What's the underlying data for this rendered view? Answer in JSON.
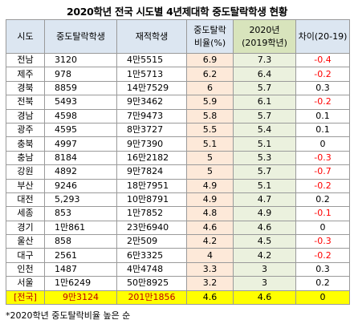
{
  "title": "2020학년 전국 시도별 4년제대학 중도탈락학생 현황",
  "headers": {
    "region": "시도",
    "dropouts": "중도탈락학생",
    "enrolled": "재적학생",
    "rate_line1": "중도탈락",
    "rate_line2": "비율(%)",
    "y2019_line1": "2020년",
    "y2019_line2": "(2019학년)",
    "diff": "차이(20-19)"
  },
  "rows": [
    {
      "region": "전남",
      "dropouts": "3120",
      "enrolled": "4만5515",
      "rate": "6.9",
      "y2019": "7.3",
      "diff": "-0.4"
    },
    {
      "region": "제주",
      "dropouts": "978",
      "enrolled": "1만5713",
      "rate": "6.2",
      "y2019": "6.4",
      "diff": "-0.2"
    },
    {
      "region": "경북",
      "dropouts": "8859",
      "enrolled": "14만7529",
      "rate": "6",
      "y2019": "5.7",
      "diff": "0.3"
    },
    {
      "region": "전북",
      "dropouts": "5493",
      "enrolled": "9만3462",
      "rate": "5.9",
      "y2019": "6.1",
      "diff": "-0.2"
    },
    {
      "region": "경남",
      "dropouts": "4598",
      "enrolled": "7만9473",
      "rate": "5.8",
      "y2019": "5.7",
      "diff": "0.1"
    },
    {
      "region": "광주",
      "dropouts": "4595",
      "enrolled": "8만3727",
      "rate": "5.5",
      "y2019": "5.4",
      "diff": "0.1"
    },
    {
      "region": "충북",
      "dropouts": "4997",
      "enrolled": "9만7390",
      "rate": "5.1",
      "y2019": "5.1",
      "diff": "0"
    },
    {
      "region": "충남",
      "dropouts": "8184",
      "enrolled": "16만2182",
      "rate": "5",
      "y2019": "5.3",
      "diff": "-0.3"
    },
    {
      "region": "강원",
      "dropouts": "4892",
      "enrolled": "9만7824",
      "rate": "5",
      "y2019": "5.7",
      "diff": "-0.7"
    },
    {
      "region": "부산",
      "dropouts": "9246",
      "enrolled": "18만7951",
      "rate": "4.9",
      "y2019": "5.1",
      "diff": "-0.2"
    },
    {
      "region": "대전",
      "dropouts": "5,293",
      "enrolled": "10만8791",
      "rate": "4.9",
      "y2019": "4.7",
      "diff": "0.2"
    },
    {
      "region": "세종",
      "dropouts": "853",
      "enrolled": "1만7852",
      "rate": "4.8",
      "y2019": "4.9",
      "diff": "-0.1"
    },
    {
      "region": "경기",
      "dropouts": "1만861",
      "enrolled": "23만6940",
      "rate": "4.6",
      "y2019": "4.6",
      "diff": "0"
    },
    {
      "region": "울산",
      "dropouts": "858",
      "enrolled": "2만509",
      "rate": "4.2",
      "y2019": "4.5",
      "diff": "-0.3"
    },
    {
      "region": "대구",
      "dropouts": "2561",
      "enrolled": "6만3325",
      "rate": "4",
      "y2019": "4.2",
      "diff": "-0.2"
    },
    {
      "region": "인천",
      "dropouts": "1487",
      "enrolled": "4만4748",
      "rate": "3.3",
      "y2019": "3",
      "diff": "0.3"
    },
    {
      "region": "서울",
      "dropouts": "1만6249",
      "enrolled": "50만8925",
      "rate": "3.2",
      "y2019": "3",
      "diff": "0.2"
    }
  ],
  "total": {
    "region": "[전국]",
    "dropouts": "9만3124",
    "enrolled": "201만1856",
    "rate": "4.6",
    "y2019": "4.6",
    "diff": "0"
  },
  "note": "*2020학년 중도탈락비율 높은 순",
  "colors": {
    "header_bg": "#dce6f1",
    "header_2019_bg": "#d8e4bc",
    "rate_bg": "#fde9d9",
    "y2019_bg": "#ebf1de",
    "negative": "#ff0000",
    "total_bg": "#ffff00",
    "total_text": "#c00000"
  }
}
